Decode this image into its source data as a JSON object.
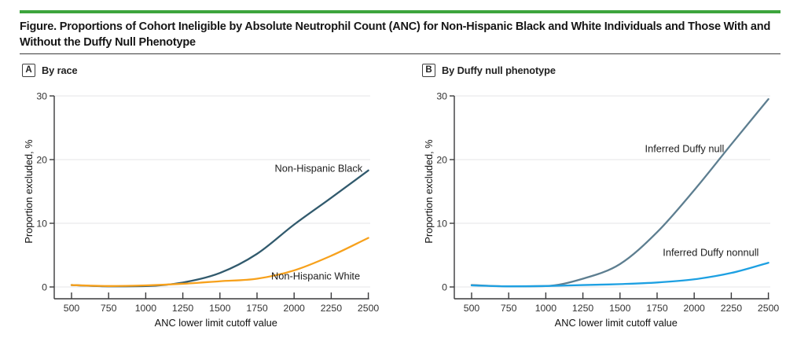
{
  "figure": {
    "title": "Figure. Proportions of Cohort Ineligible by Absolute Neutrophil Count (ANC) for Non-Hispanic Black and White Individuals and Those With and Without the Duffy Null Phenotype",
    "accent_bar_color": "#3da53d"
  },
  "style_colors": {
    "axis": "#3a3a3c",
    "gridline": "#e5e5e7",
    "tick_label": "#333333",
    "axis_title": "#111111",
    "series_label": "#1d1d1d"
  },
  "chart_data": [
    {
      "type": "line",
      "panel_letter": "A",
      "panel_title": "By race",
      "x": [
        500,
        750,
        1000,
        1250,
        1500,
        1750,
        2000,
        2250,
        2500
      ],
      "xticks": [
        500,
        750,
        1000,
        1250,
        1500,
        1750,
        2000,
        2250,
        2500
      ],
      "yticks": [
        0,
        10,
        20,
        30
      ],
      "ylim": [
        0,
        30
      ],
      "xlabel": "ANC lower limit cutoff value",
      "ylabel": "Proportion excluded, %",
      "grid": "horizontal",
      "legend_position": "inline-labels",
      "series": [
        {
          "name": "Non-Hispanic Black",
          "color": "#315a6d",
          "values": [
            0.3,
            0.1,
            0.15,
            0.7,
            2.2,
            5.2,
            9.8,
            14.0,
            18.3
          ],
          "label_at": {
            "x": 2165,
            "y": 18.6
          }
        },
        {
          "name": "Non-Hispanic White",
          "color": "#f7a11c",
          "values": [
            0.3,
            0.15,
            0.25,
            0.5,
            0.9,
            1.3,
            2.6,
            4.9,
            7.7
          ],
          "label_at": {
            "x": 2145,
            "y": 1.7
          }
        }
      ]
    },
    {
      "type": "line",
      "panel_letter": "B",
      "panel_title": "By Duffy null phenotype",
      "x": [
        500,
        750,
        1000,
        1250,
        1500,
        1750,
        2000,
        2250,
        2500
      ],
      "xticks": [
        500,
        750,
        1000,
        1250,
        1500,
        1750,
        2000,
        2250,
        2500
      ],
      "yticks": [
        0,
        10,
        20,
        30
      ],
      "ylim": [
        0,
        30
      ],
      "xlabel": "ANC lower limit cutoff value",
      "ylabel": "Proportion excluded, %",
      "grid": "horizontal",
      "legend_position": "inline-labels",
      "series": [
        {
          "name": "Inferred Duffy null",
          "color": "#5d7e90",
          "values": [
            0.3,
            0.1,
            0.15,
            1.3,
            3.6,
            8.6,
            15.2,
            22.4,
            29.5
          ],
          "label_at": {
            "x": 1935,
            "y": 21.7
          }
        },
        {
          "name": "Inferred Duffy nonnull",
          "color": "#1da0e2",
          "values": [
            0.25,
            0.1,
            0.15,
            0.3,
            0.45,
            0.7,
            1.2,
            2.2,
            3.8
          ],
          "label_at": {
            "x": 2112,
            "y": 5.4
          }
        }
      ]
    }
  ]
}
